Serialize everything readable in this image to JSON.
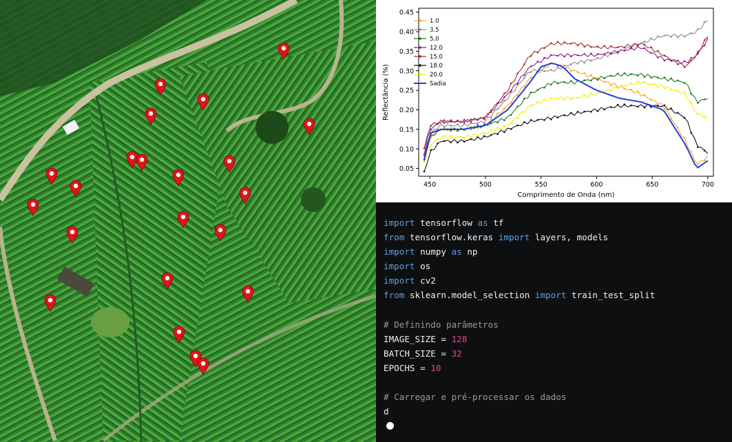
{
  "chart_data": {
    "type": "line",
    "xlabel": "Comprimento de Onda (nm)",
    "ylabel": "Reflectância (%)",
    "xlim": [
      440,
      705
    ],
    "ylim": [
      0.03,
      0.46
    ],
    "xticks": [
      "450",
      "500",
      "550",
      "600",
      "650",
      "700"
    ],
    "yticks": [
      "0.05",
      "0.10",
      "0.15",
      "0.20",
      "0.25",
      "0.30",
      "0.35",
      "0.40",
      "0.45"
    ],
    "legend_position": "upper-left",
    "grid": false,
    "series": [
      {
        "name": "1.0",
        "color": "#f5a623",
        "x": [
          445,
          450,
          460,
          480,
          500,
          520,
          540,
          560,
          580,
          600,
          620,
          640,
          660,
          680,
          690,
          700
        ],
        "y": [
          0.08,
          0.13,
          0.15,
          0.15,
          0.16,
          0.21,
          0.28,
          0.32,
          0.3,
          0.28,
          0.26,
          0.24,
          0.21,
          0.12,
          0.06,
          0.08
        ]
      },
      {
        "name": "3.5",
        "color": "#8c8c8c",
        "x": [
          445,
          450,
          460,
          480,
          500,
          520,
          540,
          560,
          580,
          600,
          620,
          640,
          660,
          680,
          690,
          700
        ],
        "y": [
          0.08,
          0.14,
          0.16,
          0.16,
          0.17,
          0.23,
          0.3,
          0.3,
          0.32,
          0.33,
          0.35,
          0.37,
          0.39,
          0.39,
          0.4,
          0.43
        ]
      },
      {
        "name": "5.0",
        "color": "#1a7a1a",
        "x": [
          445,
          450,
          460,
          480,
          500,
          520,
          540,
          560,
          580,
          600,
          620,
          640,
          660,
          680,
          690,
          700
        ],
        "y": [
          0.07,
          0.13,
          0.15,
          0.15,
          0.16,
          0.18,
          0.24,
          0.27,
          0.27,
          0.28,
          0.29,
          0.29,
          0.28,
          0.27,
          0.22,
          0.23
        ]
      },
      {
        "name": "12.0",
        "color": "#8e1a8e",
        "x": [
          445,
          450,
          460,
          480,
          500,
          520,
          540,
          560,
          580,
          600,
          620,
          640,
          660,
          680,
          690,
          700
        ],
        "y": [
          0.09,
          0.15,
          0.17,
          0.17,
          0.18,
          0.24,
          0.31,
          0.34,
          0.34,
          0.34,
          0.35,
          0.36,
          0.33,
          0.32,
          0.34,
          0.38
        ]
      },
      {
        "name": "15.0",
        "color": "#a52a2a",
        "x": [
          445,
          450,
          460,
          480,
          500,
          520,
          540,
          560,
          580,
          600,
          620,
          640,
          660,
          680,
          690,
          700
        ],
        "y": [
          0.1,
          0.16,
          0.17,
          0.17,
          0.18,
          0.25,
          0.34,
          0.37,
          0.37,
          0.36,
          0.36,
          0.37,
          0.34,
          0.31,
          0.34,
          0.39
        ]
      },
      {
        "name": "18.0",
        "color": "#111111",
        "x": [
          445,
          450,
          460,
          480,
          500,
          520,
          540,
          560,
          580,
          600,
          620,
          640,
          660,
          680,
          690,
          700
        ],
        "y": [
          0.04,
          0.09,
          0.12,
          0.12,
          0.13,
          0.15,
          0.17,
          0.18,
          0.19,
          0.2,
          0.21,
          0.21,
          0.21,
          0.18,
          0.11,
          0.09
        ]
      },
      {
        "name": "20.0",
        "color": "#f2f200",
        "x": [
          445,
          450,
          460,
          480,
          500,
          520,
          540,
          560,
          580,
          600,
          620,
          640,
          660,
          680,
          690,
          700
        ],
        "y": [
          0.07,
          0.11,
          0.13,
          0.13,
          0.14,
          0.16,
          0.21,
          0.23,
          0.23,
          0.24,
          0.26,
          0.27,
          0.26,
          0.24,
          0.19,
          0.18
        ]
      },
      {
        "name": "Sadia",
        "color": "#1f3fdc",
        "x": [
          445,
          450,
          460,
          480,
          500,
          520,
          540,
          550,
          560,
          570,
          580,
          600,
          620,
          640,
          660,
          680,
          690,
          700
        ],
        "y": [
          0.07,
          0.14,
          0.15,
          0.15,
          0.16,
          0.2,
          0.27,
          0.31,
          0.32,
          0.31,
          0.28,
          0.25,
          0.23,
          0.22,
          0.2,
          0.11,
          0.05,
          0.07
        ]
      }
    ]
  },
  "code": [
    [
      [
        "kw",
        "import"
      ],
      [
        "t",
        " tensorflow "
      ],
      [
        "kw",
        "as"
      ],
      [
        "t",
        " tf"
      ]
    ],
    [
      [
        "kw",
        "from"
      ],
      [
        "t",
        " tensorflow.keras "
      ],
      [
        "kw",
        "import"
      ],
      [
        "t",
        " layers, models"
      ]
    ],
    [
      [
        "kw",
        "import"
      ],
      [
        "t",
        " numpy "
      ],
      [
        "kw",
        "as"
      ],
      [
        "t",
        " np"
      ]
    ],
    [
      [
        "kw",
        "import"
      ],
      [
        "t",
        " os"
      ]
    ],
    [
      [
        "kw",
        "import"
      ],
      [
        "t",
        " cv2"
      ]
    ],
    [
      [
        "kw",
        "from"
      ],
      [
        "t",
        " sklearn.model_selection "
      ],
      [
        "kw",
        "import"
      ],
      [
        "t",
        " train_test_split"
      ]
    ],
    [],
    [
      [
        "cm",
        "# Definindo parâmetros"
      ]
    ],
    [
      [
        "t",
        "IMAGE_SIZE = "
      ],
      [
        "num",
        "128"
      ]
    ],
    [
      [
        "t",
        "BATCH_SIZE = "
      ],
      [
        "num",
        "32"
      ]
    ],
    [
      [
        "t",
        "EPOCHS = "
      ],
      [
        "num",
        "10"
      ]
    ],
    [],
    [
      [
        "cm",
        "# Carregar e pré-processar os dados"
      ]
    ],
    [
      [
        "t",
        "d"
      ]
    ]
  ],
  "map": {
    "marker_color": "#e0141a",
    "marker_icon": "map-pin-icon"
  }
}
